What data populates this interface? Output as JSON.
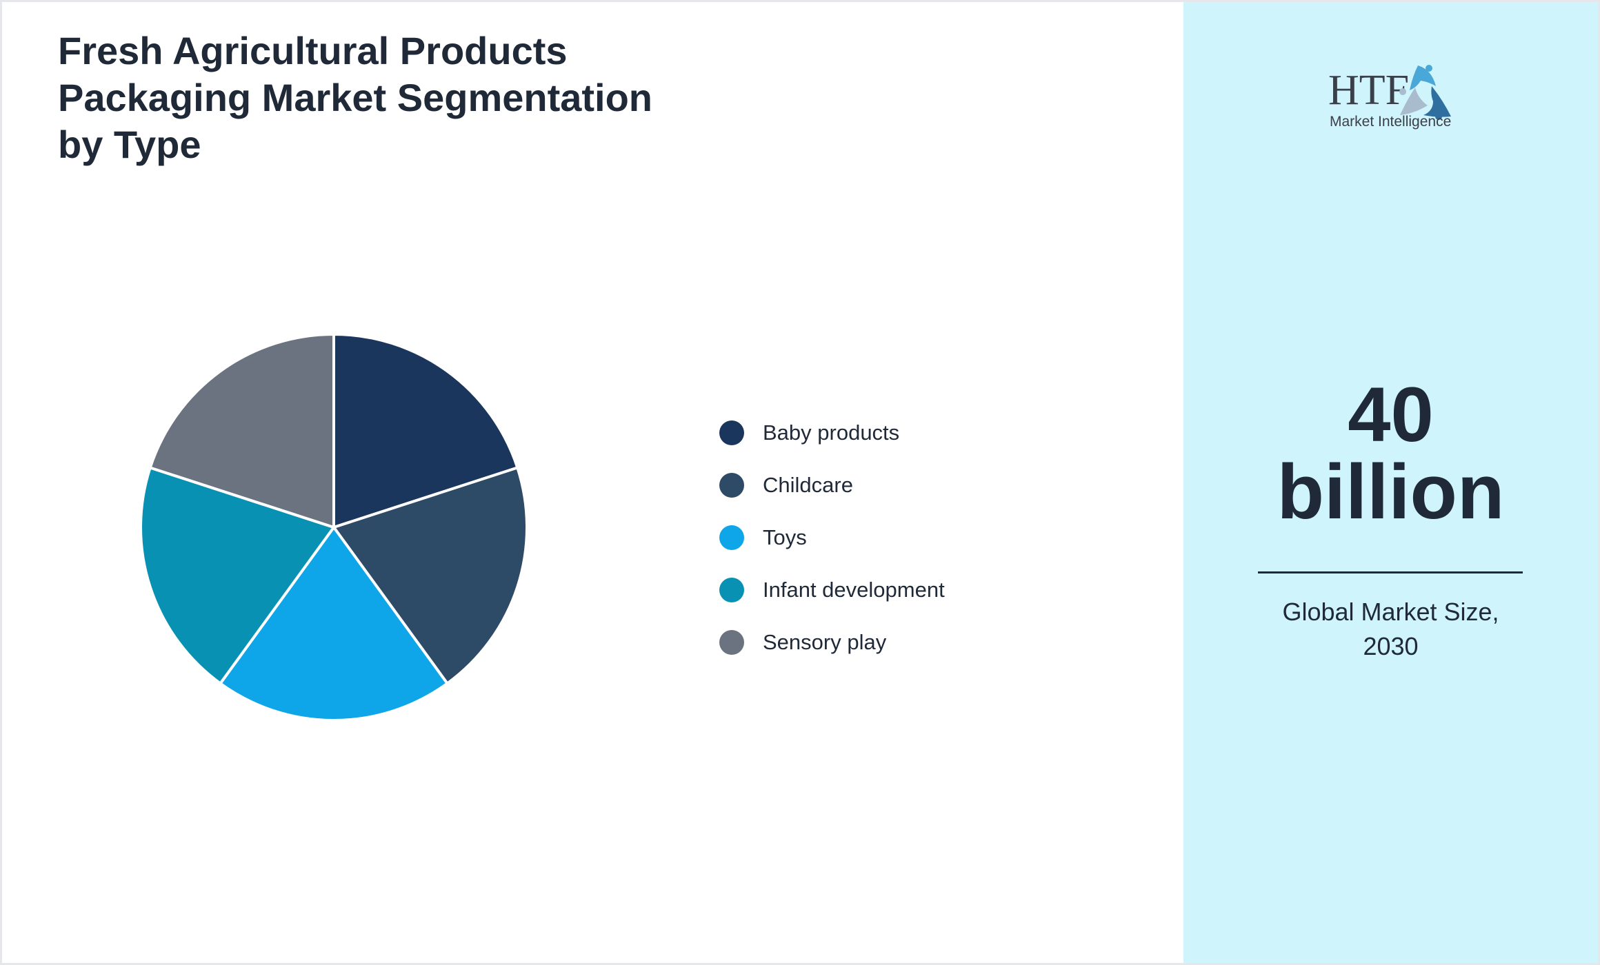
{
  "chart_data": {
    "type": "pie",
    "title": "Fresh Agricultural Products Packaging Market Segmentation by Type",
    "categories": [
      "Baby products",
      "Childcare",
      "Toys",
      "Infant development",
      "Sensory play"
    ],
    "values": [
      20,
      20,
      20,
      20,
      20
    ],
    "colors": [
      "#1b365d",
      "#2d4a66",
      "#0ea5e9",
      "#0891b2",
      "#6b7280"
    ],
    "legend_position": "right"
  },
  "title_lines": [
    "Fresh Agricultural Products",
    "Packaging Market Segmentation",
    "by Type"
  ],
  "side": {
    "logo_text": "HTF",
    "logo_subtext": "Market Intelligence",
    "value": "40",
    "unit": "billion",
    "caption_line1": "Global Market Size,",
    "caption_line2": "2030",
    "background": "#cff4fc"
  }
}
